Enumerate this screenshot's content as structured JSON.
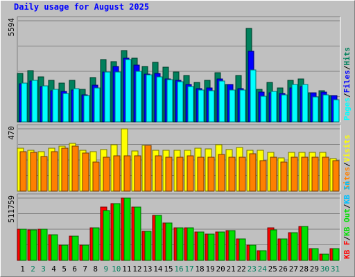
{
  "title": "Daily usage for August 2025",
  "colors": {
    "panel_bg": "#c0c0c0",
    "plot_bg": "#c0c0c0",
    "grid": "#808080",
    "hits": "#00805c",
    "files": "#0000ff",
    "pages": "#00ffff",
    "visits": "#ffff00",
    "sites": "#ff8000",
    "kbin": "#00c0ff",
    "kbout": "#ff0000",
    "kbf": "#00e000",
    "title": "#0000ff",
    "weekday": "#000000",
    "weekend": "#00805c"
  },
  "chart_data": [
    {
      "type": "bar",
      "panel": "hits-files-pages",
      "ymax_label": "5594",
      "ylim": [
        0,
        5594
      ],
      "legend": [
        "Pages",
        "/",
        "Files",
        "/",
        "Hits"
      ],
      "legend_colors": [
        "#00ffff",
        "#000000",
        "#0000ff",
        "#000000",
        "#00805c"
      ],
      "categories": [
        "1",
        "2",
        "3",
        "4",
        "5",
        "6",
        "7",
        "8",
        "9",
        "10",
        "11",
        "12",
        "13",
        "14",
        "15",
        "16",
        "17",
        "18",
        "19",
        "20",
        "21",
        "22",
        "23",
        "24",
        "25",
        "26",
        "27",
        "28",
        "29",
        "30",
        "31"
      ],
      "weekend": [
        false,
        true,
        true,
        false,
        false,
        false,
        false,
        false,
        true,
        true,
        false,
        false,
        false,
        false,
        false,
        true,
        true,
        false,
        false,
        false,
        false,
        false,
        true,
        true,
        false,
        false,
        false,
        false,
        false,
        true,
        true
      ],
      "series": [
        {
          "name": "Hits",
          "values": [
            2680,
            2820,
            2500,
            2280,
            2130,
            2280,
            1810,
            2470,
            3440,
            3330,
            3940,
            3510,
            3050,
            3300,
            3020,
            2770,
            2560,
            2180,
            2290,
            2710,
            2080,
            2550,
            5180,
            1800,
            2170,
            1880,
            2280,
            2380,
            1600,
            1730,
            1470
          ]
        },
        {
          "name": "Files",
          "values": [
            2110,
            2250,
            1950,
            1740,
            1700,
            1780,
            1490,
            2020,
            2750,
            3050,
            3510,
            3140,
            2650,
            2690,
            2380,
            2280,
            2070,
            1850,
            1860,
            2380,
            2080,
            1840,
            3890,
            1640,
            1600,
            1580,
            1880,
            1960,
            1600,
            1640,
            1440
          ]
        },
        {
          "name": "Pages",
          "values": [
            2160,
            2300,
            2000,
            1790,
            1580,
            1830,
            1470,
            1870,
            2770,
            2770,
            3440,
            2800,
            2600,
            2500,
            2340,
            2220,
            1940,
            1780,
            1730,
            2260,
            1780,
            1780,
            2890,
            1430,
            1680,
            1480,
            2050,
            2060,
            1380,
            1510,
            1240
          ]
        }
      ]
    },
    {
      "type": "bar",
      "panel": "visits-sites",
      "ymax_label": "470",
      "ylim": [
        0,
        470
      ],
      "legend": [
        "Sites",
        "/",
        "Visits"
      ],
      "legend_colors": [
        "#ff8000",
        "#000000",
        "#ffff00"
      ],
      "categories": [
        "1",
        "2",
        "3",
        "4",
        "5",
        "6",
        "7",
        "8",
        "9",
        "10",
        "11",
        "12",
        "13",
        "14",
        "15",
        "16",
        "17",
        "18",
        "19",
        "20",
        "21",
        "22",
        "23",
        "24",
        "25",
        "26",
        "27",
        "28",
        "29",
        "30",
        "31"
      ],
      "series": [
        {
          "name": "Visits",
          "values": [
            325,
            310,
            300,
            325,
            340,
            360,
            310,
            300,
            315,
            350,
            470,
            305,
            345,
            310,
            310,
            310,
            310,
            325,
            320,
            350,
            315,
            330,
            310,
            310,
            290,
            250,
            290,
            290,
            290,
            290,
            245
          ]
        },
        {
          "name": "Sites",
          "values": [
            300,
            290,
            260,
            300,
            325,
            340,
            285,
            220,
            255,
            265,
            265,
            265,
            345,
            265,
            255,
            255,
            265,
            255,
            255,
            275,
            255,
            255,
            280,
            230,
            255,
            220,
            255,
            255,
            255,
            255,
            230
          ]
        }
      ]
    },
    {
      "type": "bar",
      "panel": "kbf-in-out",
      "ymax_label": "511759",
      "ylim": [
        0,
        511759
      ],
      "legend": [
        "KB F",
        "/",
        "KB Out",
        "/",
        "KB In"
      ],
      "legend_colors": [
        "#ff0000",
        "#000000",
        "#00e000",
        "#000000",
        "#00c0ff"
      ],
      "categories": [
        "1",
        "2",
        "3",
        "4",
        "5",
        "6",
        "7",
        "8",
        "9",
        "10",
        "11",
        "12",
        "13",
        "14",
        "15",
        "16",
        "17",
        "18",
        "19",
        "20",
        "21",
        "22",
        "23",
        "24",
        "25",
        "26",
        "27",
        "28",
        "29",
        "30",
        "31"
      ],
      "series": [
        {
          "name": "KB F",
          "values": [
            255000,
            250000,
            255000,
            210000,
            125000,
            200000,
            125000,
            270000,
            435000,
            465000,
            511759,
            440000,
            240000,
            370000,
            305000,
            265000,
            270000,
            235000,
            215000,
            235000,
            245000,
            175000,
            125000,
            80000,
            265000,
            175000,
            225000,
            280000,
            95000,
            50000,
            95000
          ]
        },
        {
          "name": "KB Out",
          "values": [
            255000,
            250000,
            255000,
            210000,
            125000,
            200000,
            125000,
            270000,
            410000,
            465000,
            511759,
            440000,
            240000,
            370000,
            305000,
            265000,
            270000,
            235000,
            215000,
            235000,
            245000,
            175000,
            125000,
            80000,
            250000,
            175000,
            225000,
            280000,
            95000,
            50000,
            95000
          ]
        }
      ]
    }
  ]
}
